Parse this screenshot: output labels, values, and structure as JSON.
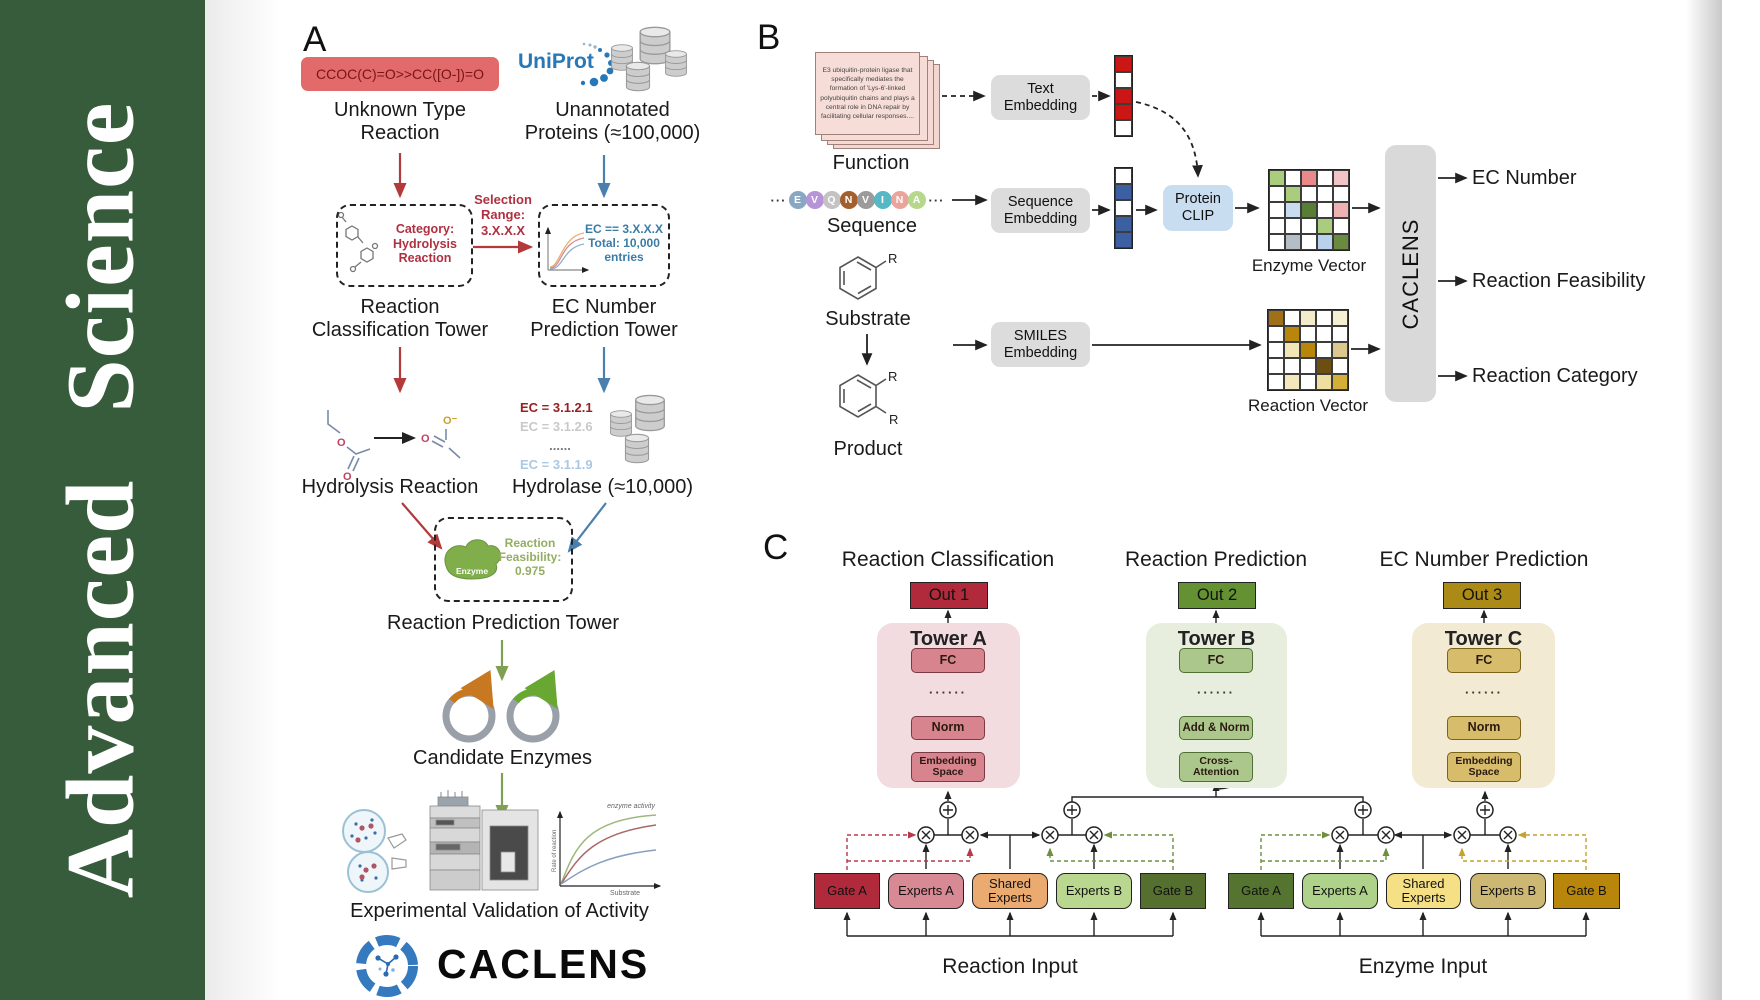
{
  "sidebar": {
    "journal": "Advanced Science"
  },
  "colors": {
    "journal_green": "#375c3b",
    "red_accent": "#b23a3a",
    "blue_accent": "#4a7fae",
    "green_accent": "#7f9f52",
    "tower_a_pink": "#f2dce0",
    "tower_b_green": "#e7eedd",
    "tower_c_gold": "#f2ead2"
  },
  "panel_a": {
    "label": "A",
    "smiles": "CCOC(C)=O>>CC([O-])=O",
    "unknown_line1": "Unknown Type",
    "unknown_line2": "Reaction",
    "uniprot": "UniProt",
    "unannotated_line1": "Unannotated",
    "unannotated_line2": "Proteins (≈100,000)",
    "selection_line1": "Selection",
    "selection_line2": "Range:",
    "selection_line3": "3.X.X.X",
    "category_line1": "Category:",
    "category_line2": "Hydrolysis",
    "category_line3": "Reaction",
    "ec_filter_line1": "EC == 3.X.X.X",
    "ec_filter_line2": "Total: 10,000",
    "ec_filter_line3": "entries",
    "tower1_line1": "Reaction",
    "tower1_line2": "Classification Tower",
    "tower2_line1": "EC Number",
    "tower2_line2": "Prediction Tower",
    "hydrolysis_label": "Hydrolysis Reaction",
    "ec_results": [
      "EC = 3.1.2.1",
      "EC = 3.1.2.6",
      "......",
      "EC = 3.1.1.9"
    ],
    "hydrolase_label": "Hydrolase (≈10,000)",
    "enzyme_badge": "Enzyme",
    "feasibility_line1": "Reaction",
    "feasibility_line2": "Feasibility:",
    "feasibility_line3": "0.975",
    "tower3_label": "Reaction Prediction Tower",
    "candidates_label": "Candidate Enzymes",
    "validation_label": "Experimental Validation of Activity",
    "activity_plot": {
      "series_label": "enzyme activity",
      "y_axis": "Rate of reaction",
      "x_axis": "Substrate"
    },
    "brand": "CACLENS"
  },
  "panel_b": {
    "label": "B",
    "function_card_text": "E3 ubiquitin-protein ligase that specifically mediates the formation of 'Lys-6'-linked polyubiquitin chains and plays a central role in DNA repair by facilitating cellular responses....",
    "function_label": "Function",
    "ellipsis": "···",
    "sequence_tokens": [
      {
        "letter": "E",
        "color": "#87a7c2"
      },
      {
        "letter": "V",
        "color": "#b793d8"
      },
      {
        "letter": "Q",
        "color": "#c3c3c3"
      },
      {
        "letter": "N",
        "color": "#a3602c"
      },
      {
        "letter": "V",
        "color": "#9b9b9b"
      },
      {
        "letter": "I",
        "color": "#56b7c5"
      },
      {
        "letter": "N",
        "color": "#eba49c"
      },
      {
        "letter": "A",
        "color": "#b6d88c"
      }
    ],
    "sequence_label": "Sequence",
    "substrate_label": "Substrate",
    "product_label": "Product",
    "r_group": "R",
    "text_embedding_line1": "Text",
    "text_embedding_line2": "Embedding",
    "sequence_embedding_line1": "Sequence",
    "sequence_embedding_line2": "Embedding",
    "smiles_embedding_line1": "SMILES",
    "smiles_embedding_line2": "Embedding",
    "protein_clip_line1": "Protein",
    "protein_clip_line2": "CLIP",
    "text_vector": [
      [
        "#cc1515"
      ],
      [
        "#ffffff"
      ],
      [
        "#cc1515"
      ],
      [
        "#cc1515"
      ],
      [
        "#ffffff"
      ]
    ],
    "sequence_vector": [
      [
        "#ffffff"
      ],
      [
        "#3b5fa0"
      ],
      [
        "#ffffff"
      ],
      [
        "#3b5fa0"
      ],
      [
        "#3b5fa0"
      ]
    ],
    "enzyme_matrix": [
      [
        "#a9cc7d",
        "#ffffff",
        "#e8898b",
        "#ffffff",
        "#f4c3c5"
      ],
      [
        "#ffffff",
        "#a9cc7d",
        "#ffffff",
        "#ffffff",
        "#ffffff"
      ],
      [
        "#ffffff",
        "#c9dbee",
        "#5a7d36",
        "#ffffff",
        "#f0b1b3"
      ],
      [
        "#ffffff",
        "#ffffff",
        "#ffffff",
        "#a9cc7d",
        "#ffffff"
      ],
      [
        "#ffffff",
        "#b5bdc5",
        "#ffffff",
        "#b9d1ea",
        "#6a8a40"
      ]
    ],
    "reaction_matrix": [
      [
        "#a07018",
        "#ffffff",
        "#f2ecca",
        "#ffffff",
        "#f6f0d2"
      ],
      [
        "#ffffff",
        "#b8860b",
        "#ffffff",
        "#ffffff",
        "#ffffff"
      ],
      [
        "#ffffff",
        "#f0e6b6",
        "#b8860b",
        "#ffffff",
        "#dcc88e"
      ],
      [
        "#ffffff",
        "#ffffff",
        "#ffffff",
        "#6b4e10",
        "#ffffff"
      ],
      [
        "#ffffff",
        "#f2e8bc",
        "#ffffff",
        "#f0dda0",
        "#d4af37"
      ]
    ],
    "enzyme_vector_label": "Enzyme Vector",
    "reaction_vector_label": "Reaction Vector",
    "caclens_bar": "CACLENS",
    "output_ec": "EC Number",
    "output_feasibility": "Reaction Feasibility",
    "output_category": "Reaction Category"
  },
  "panel_c": {
    "label": "C",
    "header_classification": "Reaction Classification",
    "header_prediction": "Reaction Prediction",
    "header_ec": "EC Number Prediction",
    "out1": "Out 1",
    "out2": "Out 2",
    "out3": "Out 3",
    "tower_a": {
      "title": "Tower A",
      "fc": "FC",
      "dots": "······",
      "norm": "Norm",
      "emb_line1": "Embedding",
      "emb_line2": "Space"
    },
    "tower_b": {
      "title": "Tower B",
      "fc": "FC",
      "dots": "······",
      "addnorm": "Add & Norm",
      "ca_line1": "Cross-",
      "ca_line2": "Attention"
    },
    "tower_c": {
      "title": "Tower C",
      "fc": "FC",
      "dots": "······",
      "norm": "Norm",
      "emb_line1": "Embedding",
      "emb_line2": "Space"
    },
    "moe_left": {
      "gate_a": "Gate A",
      "experts_a": "Experts A",
      "shared_line1": "Shared",
      "shared_line2": "Experts",
      "experts_b": "Experts B",
      "gate_b": "Gate B",
      "input_label": "Reaction Input"
    },
    "moe_right": {
      "gate_a": "Gate A",
      "experts_a": "Experts A",
      "shared_line1": "Shared",
      "shared_line2": "Experts",
      "experts_b": "Experts B",
      "gate_b": "Gate B",
      "input_label": "Enzyme Input"
    }
  }
}
